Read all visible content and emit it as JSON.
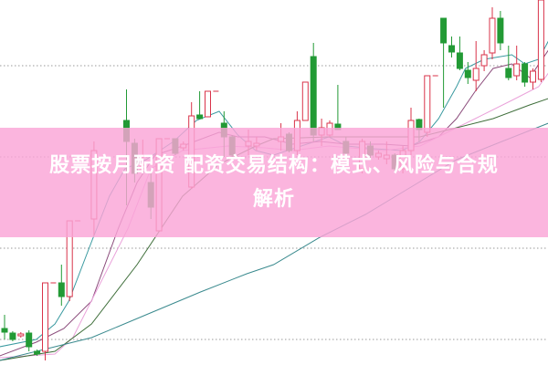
{
  "banner": {
    "title_line1": "股票按月配资 配资交易结构：模式、风险与合规",
    "title_line2": "解析"
  },
  "chart_data": {
    "type": "candlestick",
    "title": "",
    "xlabel": "",
    "ylabel": "",
    "grid": true,
    "gridlines": [
      32.8,
      22.8,
      12.8,
      2.8
    ],
    "ylim": [
      0,
      40
    ],
    "xlim": [
      0,
      66.9
    ],
    "colors": {
      "up": "#d9334a",
      "down": "#229a35",
      "grid": "#9a9a9a"
    },
    "candles": [
      [
        0,
        4.0,
        5.5,
        2.8,
        3.6
      ],
      [
        1,
        3.5,
        3.7,
        2.6,
        2.8
      ],
      [
        2,
        3.2,
        3.6,
        3.0,
        3.4
      ],
      [
        3,
        3.5,
        3.8,
        1.5,
        2.0
      ],
      [
        4,
        1.5,
        1.7,
        1.0,
        1.2
      ],
      [
        5,
        1.5,
        9.0,
        0.5,
        9.0
      ],
      [
        6,
        9,
        9,
        9,
        9
      ],
      [
        7,
        9,
        11,
        6.5,
        7.5
      ],
      [
        8,
        7.5,
        15.8,
        7,
        15.8
      ],
      [
        9,
        15.8,
        15.8,
        15.8,
        15.8
      ],
      [
        11,
        16,
        24.5,
        14.2,
        23.5
      ],
      [
        15,
        26.8,
        30.2,
        17.5,
        24.5
      ],
      [
        16,
        24.3,
        24.8,
        20,
        21
      ],
      [
        17,
        21.5,
        24.7,
        21,
        21.9
      ],
      [
        18,
        20,
        21,
        16,
        17.3
      ],
      [
        19,
        14.7,
        24.8,
        14.7,
        24.8
      ],
      [
        20,
        24.8,
        24.8,
        24.8,
        24.8
      ],
      [
        21,
        24.8,
        24.8,
        23,
        23.2
      ],
      [
        22,
        23.8,
        24.5,
        23.5,
        24.2
      ],
      [
        23,
        19.5,
        28.8,
        19.3,
        27.3
      ],
      [
        24,
        27.4,
        30,
        27,
        27
      ],
      [
        25,
        27.2,
        30,
        27.2,
        30
      ],
      [
        26,
        30,
        30,
        30,
        30
      ],
      [
        27,
        26.5,
        27.8,
        22.8,
        25
      ],
      [
        28,
        25,
        25.2,
        22.5,
        23
      ],
      [
        30,
        24,
        25.8,
        23,
        24.5
      ],
      [
        31,
        24,
        25,
        23.5,
        24.3
      ],
      [
        34,
        24.5,
        26.5,
        23.5,
        25
      ],
      [
        35,
        25.3,
        25.5,
        23.3,
        23.5
      ],
      [
        36,
        23.5,
        27.8,
        23,
        26.8
      ],
      [
        37,
        26.8,
        31,
        26.8,
        31
      ],
      [
        38,
        33.8,
        35.3,
        24.5,
        25.2
      ],
      [
        39,
        25.2,
        27,
        24,
        26
      ],
      [
        40,
        25.2,
        26.8,
        25,
        26.5
      ],
      [
        41,
        26.4,
        30.7,
        25.8,
        25.8
      ],
      [
        42,
        24.5,
        25,
        22.8,
        23.2
      ],
      [
        44,
        21.5,
        24.8,
        21,
        24.5
      ],
      [
        45,
        24,
        24.5,
        22.5,
        23
      ],
      [
        46,
        22.8,
        23.5,
        22.5,
        23.2
      ],
      [
        47,
        22.6,
        24.5,
        22,
        23
      ],
      [
        48,
        23,
        23.2,
        21.2,
        21.5
      ],
      [
        49,
        21.5,
        24,
        21,
        23.5
      ],
      [
        50,
        23.5,
        28.2,
        23,
        26.8
      ],
      [
        51,
        26.9,
        27,
        24.5,
        25.8
      ],
      [
        52,
        25.5,
        31.7,
        25,
        31.7
      ],
      [
        53,
        31.7,
        31.7,
        31.7,
        31.7
      ],
      [
        54,
        38,
        38,
        28.2,
        35.3
      ],
      [
        55,
        35,
        36,
        33.7,
        34.3
      ],
      [
        56,
        34.2,
        36,
        32.3,
        32.5
      ],
      [
        57,
        32.3,
        33.2,
        30.8,
        31.5
      ],
      [
        58,
        31.2,
        35.5,
        30,
        32.5
      ],
      [
        59,
        32.8,
        34.5,
        32.2,
        34
      ],
      [
        60,
        34.2,
        39.2,
        33.5,
        38
      ],
      [
        61,
        38,
        38.8,
        34.5,
        35.3
      ],
      [
        62,
        32.5,
        35,
        31.2,
        31.5
      ],
      [
        63,
        31.7,
        35,
        31.2,
        33
      ],
      [
        64,
        33,
        33.2,
        30.5,
        31
      ],
      [
        65,
        31,
        32.5,
        30.2,
        32.2
      ],
      [
        66,
        31.3,
        40,
        31,
        40
      ]
    ],
    "moving_averages": [
      {
        "color": "#3a9aa0",
        "points": [
          [
            -0.6,
            2
          ],
          [
            3.9,
            2.8
          ],
          [
            6.2,
            4.5
          ],
          [
            7.9,
            7
          ],
          [
            10.7,
            13.5
          ],
          [
            12.9,
            18.5
          ],
          [
            14.8,
            21.5
          ],
          [
            17.4,
            22.5
          ],
          [
            20.8,
            24.5
          ],
          [
            23.6,
            26.8
          ],
          [
            26.4,
            27.8
          ],
          [
            28.7,
            25.2
          ],
          [
            30.9,
            23.5
          ],
          [
            33.1,
            23
          ],
          [
            36.5,
            24
          ],
          [
            39.9,
            25
          ],
          [
            42.1,
            24
          ],
          [
            45.5,
            23.7
          ],
          [
            48.9,
            23.5
          ],
          [
            51.1,
            24.5
          ],
          [
            53.4,
            27
          ],
          [
            55.6,
            30.5
          ],
          [
            56.7,
            32.5
          ],
          [
            59,
            33.5
          ],
          [
            62.4,
            34
          ],
          [
            64,
            33
          ],
          [
            65.7,
            33.5
          ],
          [
            66.9,
            35.5
          ]
        ]
      },
      {
        "color": "#8a4a7a",
        "points": [
          [
            -0.6,
            1
          ],
          [
            3.9,
            2.5
          ],
          [
            7.3,
            4
          ],
          [
            10.7,
            7
          ],
          [
            14,
            15
          ],
          [
            16.3,
            20
          ],
          [
            18.5,
            23
          ],
          [
            21.9,
            24
          ],
          [
            26.4,
            25.5
          ],
          [
            28.7,
            25
          ],
          [
            32,
            25
          ],
          [
            35.4,
            24.2
          ],
          [
            38.8,
            24.5
          ],
          [
            42.1,
            24.2
          ],
          [
            46.6,
            24.2
          ],
          [
            50,
            24
          ],
          [
            53.4,
            25
          ],
          [
            55.6,
            27
          ],
          [
            57.9,
            30
          ],
          [
            60.1,
            32.5
          ],
          [
            62.4,
            33
          ],
          [
            64.6,
            31.5
          ],
          [
            66.9,
            34.5
          ]
        ]
      },
      {
        "color": "#eaa2da",
        "points": [
          [
            -0.6,
            0.8
          ],
          [
            6.2,
            1.2
          ],
          [
            8.4,
            3
          ],
          [
            11.8,
            9
          ],
          [
            15.2,
            15
          ],
          [
            18,
            21.5
          ],
          [
            21.9,
            23.5
          ],
          [
            27.5,
            24
          ],
          [
            32,
            23.8
          ],
          [
            35.4,
            23.5
          ],
          [
            39.9,
            24
          ],
          [
            46.6,
            23.5
          ],
          [
            51.1,
            24
          ],
          [
            55.6,
            26
          ],
          [
            57.9,
            27
          ],
          [
            62.4,
            29
          ],
          [
            65.7,
            30.5
          ],
          [
            66.9,
            32
          ]
        ]
      },
      {
        "color": "#3e6e3a",
        "points": [
          [
            -0.6,
            0.5
          ],
          [
            6.2,
            1.5
          ],
          [
            10.7,
            4.5
          ],
          [
            16.3,
            11
          ],
          [
            21.9,
            18.5
          ],
          [
            26.4,
            22
          ],
          [
            30.9,
            24
          ],
          [
            33.1,
            24.8
          ],
          [
            39.9,
            25
          ],
          [
            46.6,
            25
          ],
          [
            51.1,
            25
          ],
          [
            55.6,
            26
          ],
          [
            60.1,
            27
          ],
          [
            64.6,
            28.5
          ],
          [
            66.9,
            29.2
          ]
        ]
      },
      {
        "color": "#3a8a8e",
        "points": [
          [
            -0.6,
            0.5
          ],
          [
            6.2,
            2
          ],
          [
            10.7,
            3
          ],
          [
            17.4,
            5.5
          ],
          [
            24.1,
            8
          ],
          [
            29.8,
            10
          ],
          [
            33.1,
            11
          ],
          [
            38.8,
            14
          ],
          [
            44.4,
            16.5
          ],
          [
            50,
            19.5
          ],
          [
            55.6,
            22.5
          ],
          [
            61.2,
            24.5
          ],
          [
            66.9,
            26.5
          ]
        ]
      }
    ]
  }
}
